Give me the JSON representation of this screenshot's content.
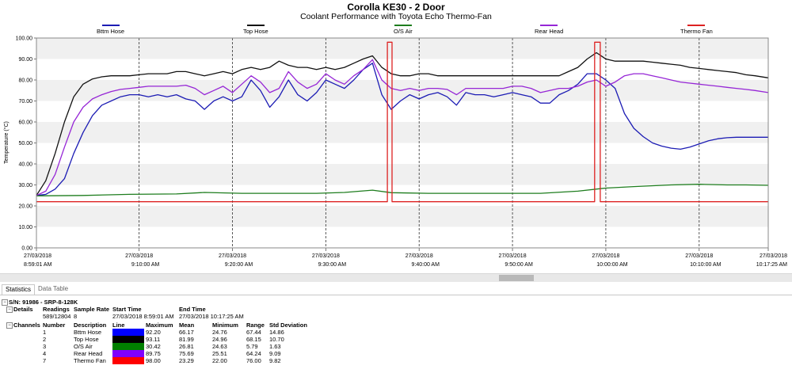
{
  "chart_data": {
    "type": "line",
    "title": "Corolla KE30  -  2 Door",
    "subtitle": "Coolant Performance with Toyota Echo Thermo-Fan",
    "ylabel": "Temperature (°C)",
    "ylim": [
      0,
      100
    ],
    "y_ticks": [
      "0.00",
      "10.00",
      "20.00",
      "30.00",
      "40.00",
      "50.00",
      "60.00",
      "70.00",
      "80.00",
      "90.00",
      "100.00"
    ],
    "x_range_min": [
      0,
      78.4
    ],
    "x_ticks": [
      {
        "date": "27/03/2018",
        "time": "8:59:01 AM",
        "min": 0
      },
      {
        "date": "27/03/2018",
        "time": "9:10:00 AM",
        "min": 11
      },
      {
        "date": "27/03/2018",
        "time": "9:20:00 AM",
        "min": 21
      },
      {
        "date": "27/03/2018",
        "time": "9:30:00 AM",
        "min": 31
      },
      {
        "date": "27/03/2018",
        "time": "9:40:00 AM",
        "min": 41
      },
      {
        "date": "27/03/2018",
        "time": "9:50:00 AM",
        "min": 51
      },
      {
        "date": "27/03/2018",
        "time": "10:00:00 AM",
        "min": 61
      },
      {
        "date": "27/03/2018",
        "time": "10:10:00 AM",
        "min": 71
      },
      {
        "date": "27/03/2018",
        "time": "10:17:25 AM",
        "min": 78.4
      }
    ],
    "grid": true,
    "legend_position": "top",
    "series": [
      {
        "name": "Bttm Hose",
        "color": "#1c1cb4",
        "points": [
          [
            0,
            25
          ],
          [
            1,
            25.5
          ],
          [
            2,
            28
          ],
          [
            3,
            33
          ],
          [
            4,
            45
          ],
          [
            5,
            55
          ],
          [
            6,
            63
          ],
          [
            7,
            68
          ],
          [
            8,
            70
          ],
          [
            9,
            72
          ],
          [
            10,
            73
          ],
          [
            11,
            73
          ],
          [
            12,
            72
          ],
          [
            13,
            73
          ],
          [
            14,
            72
          ],
          [
            15,
            73
          ],
          [
            16,
            71
          ],
          [
            17,
            70
          ],
          [
            18,
            66
          ],
          [
            19,
            70
          ],
          [
            20,
            72
          ],
          [
            21,
            70
          ],
          [
            22,
            72
          ],
          [
            23,
            80
          ],
          [
            24,
            75
          ],
          [
            25,
            67
          ],
          [
            26,
            72
          ],
          [
            27,
            80
          ],
          [
            28,
            73
          ],
          [
            29,
            70
          ],
          [
            30,
            74
          ],
          [
            31,
            80
          ],
          [
            32,
            78
          ],
          [
            33,
            76
          ],
          [
            34,
            80
          ],
          [
            35,
            85
          ],
          [
            36,
            88
          ],
          [
            37,
            73
          ],
          [
            38,
            66
          ],
          [
            39,
            70
          ],
          [
            40,
            73
          ],
          [
            41,
            71
          ],
          [
            42,
            73
          ],
          [
            43,
            74
          ],
          [
            44,
            72
          ],
          [
            45,
            68
          ],
          [
            46,
            74
          ],
          [
            47,
            73
          ],
          [
            48,
            73
          ],
          [
            49,
            72
          ],
          [
            50,
            73
          ],
          [
            51,
            74
          ],
          [
            52,
            73
          ],
          [
            53,
            72
          ],
          [
            54,
            69
          ],
          [
            55,
            69
          ],
          [
            56,
            73
          ],
          [
            57,
            75
          ],
          [
            58,
            78
          ],
          [
            59,
            83
          ],
          [
            60,
            83
          ],
          [
            61,
            80
          ],
          [
            62,
            76
          ],
          [
            63,
            64
          ],
          [
            64,
            57
          ],
          [
            65,
            53
          ],
          [
            66,
            50
          ],
          [
            67,
            48.5
          ],
          [
            68,
            47.5
          ],
          [
            69,
            47
          ],
          [
            70,
            48
          ],
          [
            71,
            49.5
          ],
          [
            72,
            51
          ],
          [
            73,
            52
          ],
          [
            74,
            52.5
          ],
          [
            75,
            52.7
          ],
          [
            76,
            52.7
          ],
          [
            77,
            52.7
          ],
          [
            78.4,
            52.7
          ]
        ]
      },
      {
        "name": "Top Hose",
        "color": "#111111",
        "points": [
          [
            0,
            25
          ],
          [
            1,
            32
          ],
          [
            2,
            45
          ],
          [
            3,
            60
          ],
          [
            4,
            72
          ],
          [
            5,
            78
          ],
          [
            6,
            80.5
          ],
          [
            7,
            81.5
          ],
          [
            8,
            82
          ],
          [
            9,
            82
          ],
          [
            10,
            82
          ],
          [
            11,
            82.5
          ],
          [
            12,
            83
          ],
          [
            13,
            83
          ],
          [
            14,
            83
          ],
          [
            15,
            84
          ],
          [
            16,
            84
          ],
          [
            17,
            83
          ],
          [
            18,
            82
          ],
          [
            19,
            83
          ],
          [
            20,
            84
          ],
          [
            21,
            83
          ],
          [
            22,
            85
          ],
          [
            23,
            86
          ],
          [
            24,
            85
          ],
          [
            25,
            86
          ],
          [
            26,
            89
          ],
          [
            27,
            87
          ],
          [
            28,
            86
          ],
          [
            29,
            86
          ],
          [
            30,
            85
          ],
          [
            31,
            86
          ],
          [
            32,
            85
          ],
          [
            33,
            86
          ],
          [
            34,
            88
          ],
          [
            35,
            90
          ],
          [
            36,
            91.5
          ],
          [
            37,
            86
          ],
          [
            38,
            83
          ],
          [
            39,
            82
          ],
          [
            40,
            82
          ],
          [
            41,
            83
          ],
          [
            42,
            83
          ],
          [
            43,
            82
          ],
          [
            44,
            82
          ],
          [
            45,
            82
          ],
          [
            46,
            82
          ],
          [
            47,
            82
          ],
          [
            48,
            82
          ],
          [
            49,
            82
          ],
          [
            50,
            82
          ],
          [
            51,
            82
          ],
          [
            52,
            82
          ],
          [
            53,
            82
          ],
          [
            54,
            82
          ],
          [
            55,
            82
          ],
          [
            56,
            82
          ],
          [
            57,
            84
          ],
          [
            58,
            86
          ],
          [
            59,
            90
          ],
          [
            60,
            93
          ],
          [
            61,
            90
          ],
          [
            62,
            89
          ],
          [
            63,
            89
          ],
          [
            64,
            89
          ],
          [
            65,
            89
          ],
          [
            66,
            88.5
          ],
          [
            67,
            88
          ],
          [
            68,
            87.5
          ],
          [
            69,
            87
          ],
          [
            70,
            86
          ],
          [
            71,
            85.5
          ],
          [
            72,
            85
          ],
          [
            73,
            84.5
          ],
          [
            74,
            84
          ],
          [
            75,
            83.5
          ],
          [
            76,
            82.5
          ],
          [
            77,
            82
          ],
          [
            78.4,
            81
          ]
        ]
      },
      {
        "name": "O/S Air",
        "color": "#1e7d1e",
        "points": [
          [
            0,
            24.8
          ],
          [
            5,
            25
          ],
          [
            10,
            25.5
          ],
          [
            15,
            25.7
          ],
          [
            18,
            26.4
          ],
          [
            22,
            26
          ],
          [
            26,
            26
          ],
          [
            30,
            26
          ],
          [
            33,
            26.4
          ],
          [
            36,
            27.5
          ],
          [
            38,
            26.3
          ],
          [
            42,
            26
          ],
          [
            46,
            26
          ],
          [
            50,
            26
          ],
          [
            54,
            26
          ],
          [
            58,
            27
          ],
          [
            61,
            28.5
          ],
          [
            64,
            29.2
          ],
          [
            68,
            30
          ],
          [
            71,
            30.3
          ],
          [
            74,
            30
          ],
          [
            76,
            30
          ],
          [
            78.4,
            29.8
          ]
        ]
      },
      {
        "name": "Rear Head",
        "color": "#9626d6",
        "points": [
          [
            0,
            25
          ],
          [
            1,
            27
          ],
          [
            2,
            35
          ],
          [
            3,
            48
          ],
          [
            4,
            60
          ],
          [
            5,
            67
          ],
          [
            6,
            71
          ],
          [
            7,
            73
          ],
          [
            8,
            74.5
          ],
          [
            9,
            75.5
          ],
          [
            10,
            76
          ],
          [
            11,
            76.5
          ],
          [
            12,
            77
          ],
          [
            13,
            77
          ],
          [
            14,
            77
          ],
          [
            15,
            77
          ],
          [
            16,
            77.5
          ],
          [
            17,
            76
          ],
          [
            18,
            73
          ],
          [
            19,
            75
          ],
          [
            20,
            77
          ],
          [
            21,
            74
          ],
          [
            22,
            78
          ],
          [
            23,
            82
          ],
          [
            24,
            79
          ],
          [
            25,
            74
          ],
          [
            26,
            76
          ],
          [
            27,
            84
          ],
          [
            28,
            79
          ],
          [
            29,
            76
          ],
          [
            30,
            78
          ],
          [
            31,
            83
          ],
          [
            32,
            80
          ],
          [
            33,
            78
          ],
          [
            34,
            82
          ],
          [
            35,
            85
          ],
          [
            36,
            89.7
          ],
          [
            37,
            80
          ],
          [
            38,
            76
          ],
          [
            39,
            75
          ],
          [
            40,
            76
          ],
          [
            41,
            75
          ],
          [
            42,
            76
          ],
          [
            43,
            76
          ],
          [
            44,
            75.5
          ],
          [
            45,
            73
          ],
          [
            46,
            76
          ],
          [
            47,
            76
          ],
          [
            48,
            76
          ],
          [
            49,
            76
          ],
          [
            50,
            76
          ],
          [
            51,
            77
          ],
          [
            52,
            77
          ],
          [
            53,
            76
          ],
          [
            54,
            74
          ],
          [
            55,
            75
          ],
          [
            56,
            76
          ],
          [
            57,
            76
          ],
          [
            58,
            77
          ],
          [
            59,
            79
          ],
          [
            60,
            80
          ],
          [
            61,
            77
          ],
          [
            62,
            79
          ],
          [
            63,
            82
          ],
          [
            64,
            83
          ],
          [
            65,
            83
          ],
          [
            66,
            82
          ],
          [
            67,
            81
          ],
          [
            68,
            80
          ],
          [
            69,
            79
          ],
          [
            70,
            78.5
          ],
          [
            71,
            78
          ],
          [
            72,
            77.5
          ],
          [
            73,
            77
          ],
          [
            74,
            76.5
          ],
          [
            75,
            76
          ],
          [
            76,
            75.5
          ],
          [
            77,
            75
          ],
          [
            78.4,
            74
          ]
        ]
      },
      {
        "name": "Thermo Fan",
        "color": "#dd2222",
        "points": [
          [
            0,
            22
          ],
          [
            37.6,
            22
          ],
          [
            37.6,
            98
          ],
          [
            38.1,
            98
          ],
          [
            38.1,
            22
          ],
          [
            59.8,
            22
          ],
          [
            59.8,
            98
          ],
          [
            60.4,
            98
          ],
          [
            60.4,
            22
          ],
          [
            78.4,
            22
          ]
        ]
      }
    ]
  },
  "tabs": [
    {
      "label": "Statistics",
      "active": true
    },
    {
      "label": "Data Table",
      "active": false
    }
  ],
  "stats": {
    "serial": "S/N: 91986 - SRP-8-128K",
    "details_label": "Details",
    "details_headers": [
      "Readings",
      "Sample Rate",
      "Start Time",
      "End Time"
    ],
    "details_values": [
      "589/12804",
      "8",
      "27/03/2018 8:59:01 AM",
      "27/03/2018 10:17:25 AM"
    ],
    "channels_label": "Channels",
    "channel_headers": [
      "Number",
      "Description",
      "Line",
      "Maximum",
      "Mean",
      "Minimum",
      "Range",
      "Std Deviation"
    ],
    "channels": [
      {
        "number": "1",
        "description": "Bttm Hose",
        "color": "#0000ff",
        "maximum": "92.20",
        "mean": "66.17",
        "minimum": "24.76",
        "range": "67.44",
        "std": "14.86"
      },
      {
        "number": "2",
        "description": "Top Hose",
        "color": "#000000",
        "maximum": "93.11",
        "mean": "81.99",
        "minimum": "24.96",
        "range": "68.15",
        "std": "10.70"
      },
      {
        "number": "3",
        "description": "O/S Air",
        "color": "#008000",
        "maximum": "30.42",
        "mean": "26.81",
        "minimum": "24.63",
        "range": "5.79",
        "std": "1.63"
      },
      {
        "number": "4",
        "description": "Rear Head",
        "color": "#8000ff",
        "maximum": "89.75",
        "mean": "75.69",
        "minimum": "25.51",
        "range": "64.24",
        "std": "9.09"
      },
      {
        "number": "7",
        "description": "Thermo Fan",
        "color": "#ff0000",
        "maximum": "98.00",
        "mean": "23.29",
        "minimum": "22.00",
        "range": "76.00",
        "std": "9.82"
      }
    ]
  }
}
